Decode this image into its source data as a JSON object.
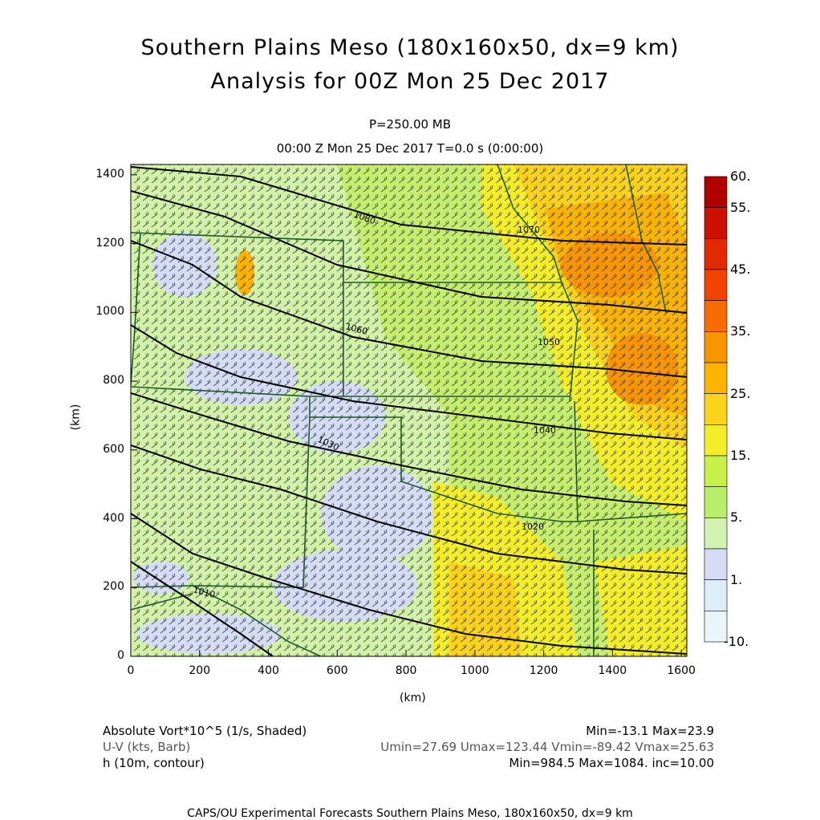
{
  "titles": {
    "line1": "Southern Plains Meso (180x160x50, dx=9 km)",
    "line2": "Analysis for 00Z Mon 25 Dec 2017",
    "level": "P=250.00 MB",
    "time": "00:00 Z Mon 25 Dec 2017   T=0.0 s (0:00:00)"
  },
  "axes": {
    "xlabel": "(km)",
    "ylabel": "(km)",
    "xticks": [
      "0",
      "200",
      "400",
      "600",
      "800",
      "1000",
      "1200",
      "1400",
      "1600"
    ],
    "yticks": [
      "0",
      "200",
      "400",
      "600",
      "800",
      "1000",
      "1200",
      "1400"
    ]
  },
  "colorbar": {
    "labels": [
      "60.",
      "55.",
      "45.",
      "35.",
      "25.",
      "15.",
      "5.",
      "1.",
      "-10."
    ],
    "colors": [
      "#b00000",
      "#cc1100",
      "#e22a00",
      "#f24400",
      "#f76c00",
      "#f89500",
      "#fbb300",
      "#fcd21c",
      "#f4ee2a",
      "#c8f04a",
      "#b9ee6a",
      "#d0f4b0",
      "#d4dcf6",
      "#ddeef8",
      "#e8f6fa"
    ]
  },
  "contours": {
    "labels": [
      "1010",
      "1020",
      "1030",
      "1040",
      "1050",
      "1060",
      "1070",
      "1080"
    ]
  },
  "legend": {
    "field1_name": "Absolute Vort*10^5 (1/s, Shaded)",
    "field1_stats": "Min=-13.1 Max=23.9",
    "field2_name": "U-V (kts, Barb)",
    "field2_stats": "Umin=27.69 Umax=123.44 Vmin=-89.42 Vmax=25.63",
    "field3_name": "h (10m, contour)",
    "field3_stats": "Min=984.5 Max=1084. inc=10.00"
  },
  "footer": "CAPS/OU Experimental Forecasts  Southern Plains Meso, 180x160x50, dx=9 km"
}
